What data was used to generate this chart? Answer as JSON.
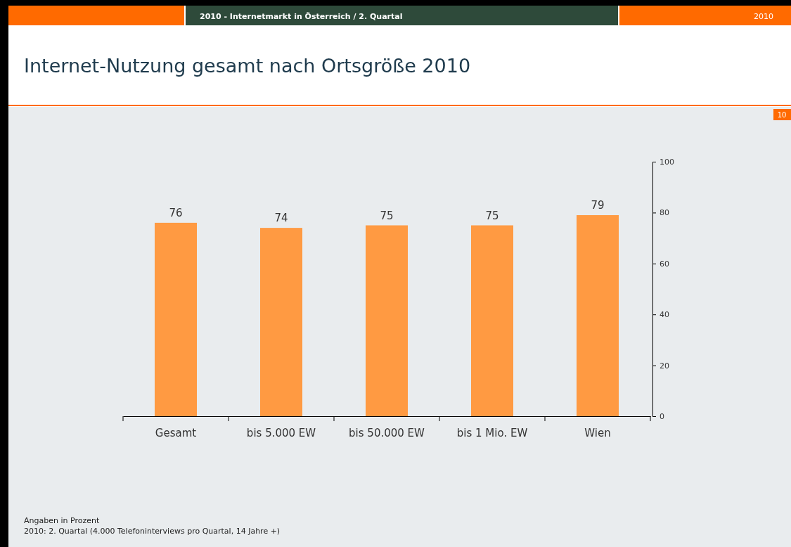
{
  "chart_data": {
    "type": "bar",
    "title": "Internet-Nutzung gesamt nach Ortsgröße 2010",
    "categories": [
      "Gesamt",
      "bis 5.000 EW",
      "bis 50.000 EW",
      "bis 1 Mio. EW",
      "Wien"
    ],
    "values": [
      76,
      74,
      75,
      75,
      79
    ],
    "color": "#ff9a42",
    "ylim": [
      0,
      100
    ],
    "yticks": [
      0,
      20,
      40,
      60,
      80,
      100
    ],
    "grid": false,
    "data_labels": true,
    "annotations": [
      "2010 - Internetmarkt in Österreich / 2. Quartal",
      "2010",
      "10",
      "Angaben in Prozent",
      "2010: 2. Quartal (4.000 Telefoninterviews pro Quartal, 14 Jahre +)"
    ]
  }
}
